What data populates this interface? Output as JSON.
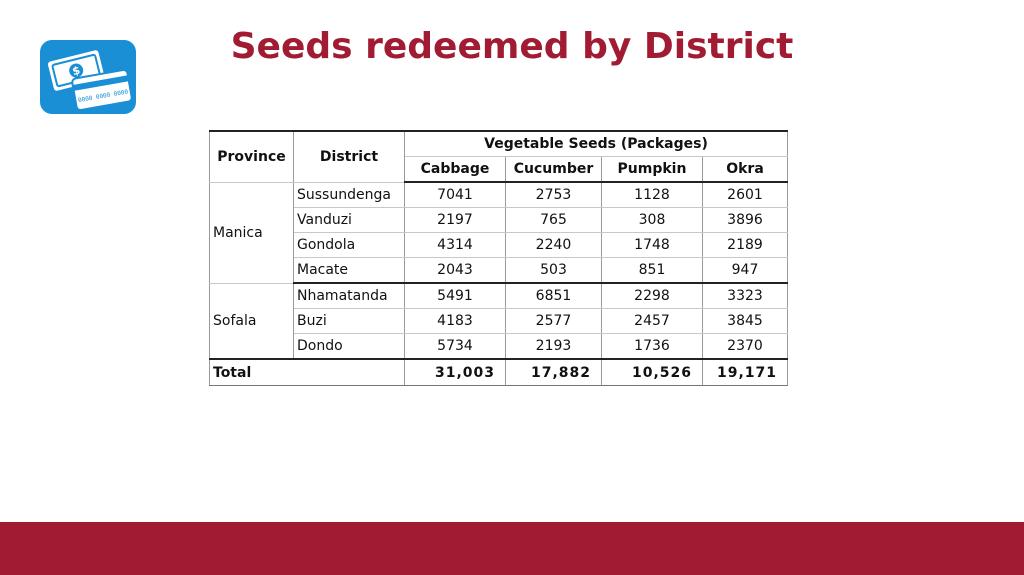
{
  "title": "Seeds redeemed by District",
  "logo_icon": "money-card-icon",
  "logo_card_text": "0000 0000 0000",
  "table": {
    "header": {
      "province": "Province",
      "district": "District",
      "group": "Vegetable Seeds (Packages)",
      "columns": [
        "Cabbage",
        "Cucumber",
        "Pumpkin",
        "Okra"
      ]
    },
    "groups": [
      {
        "province": "Manica",
        "rows": [
          {
            "district": "Sussundenga",
            "values": [
              "7041",
              "2753",
              "1128",
              "2601"
            ]
          },
          {
            "district": "Vanduzi",
            "values": [
              "2197",
              "765",
              "308",
              "3896"
            ]
          },
          {
            "district": "Gondola",
            "values": [
              "4314",
              "2240",
              "1748",
              "2189"
            ]
          },
          {
            "district": "Macate",
            "values": [
              "2043",
              "503",
              "851",
              "947"
            ]
          }
        ]
      },
      {
        "province": "Sofala",
        "rows": [
          {
            "district": "Nhamatanda",
            "values": [
              "5491",
              "6851",
              "2298",
              "3323"
            ]
          },
          {
            "district": "Buzi",
            "values": [
              "4183",
              "2577",
              "2457",
              "3845"
            ]
          },
          {
            "district": "Dondo",
            "values": [
              "5734",
              "2193",
              "1736",
              "2370"
            ]
          }
        ]
      }
    ],
    "total": {
      "label": "Total",
      "values": [
        "31,003",
        "17,882",
        "10,526",
        "19,171"
      ]
    }
  },
  "colors": {
    "accent": "#a11c33",
    "logo_bg": "#1a8fd6"
  }
}
